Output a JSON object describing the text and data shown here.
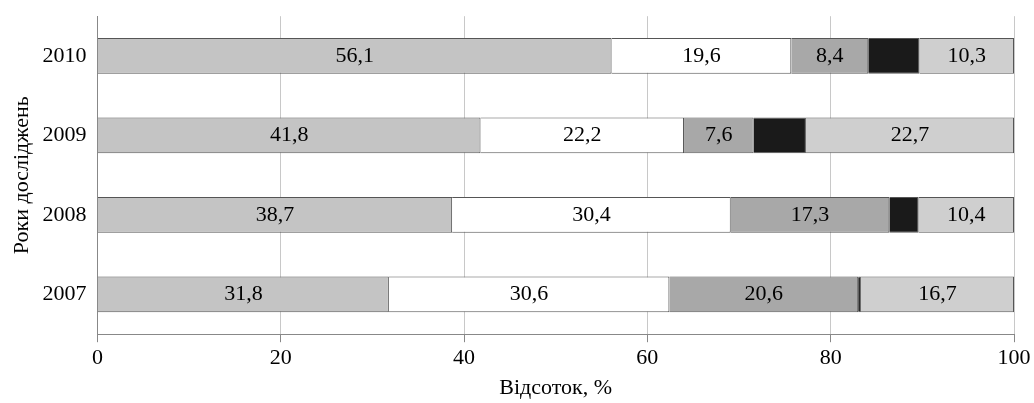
{
  "chart_data": {
    "type": "bar",
    "orientation": "horizontal",
    "stacked": true,
    "xlabel": "Відсоток, %",
    "ylabel": "Роки досліджень",
    "categories": [
      "2010",
      "2009",
      "2008",
      "2007"
    ],
    "series": [
      {
        "color": "#c4c4c4",
        "values": [
          56.1,
          41.8,
          38.7,
          31.8
        ],
        "value_labels": [
          "56,1",
          "41,8",
          "38,7",
          "31,8"
        ]
      },
      {
        "color": "#ffffff",
        "values": [
          19.6,
          22.2,
          30.4,
          30.6
        ],
        "value_labels": [
          "19,6",
          "22,2",
          "30,4",
          "30,6"
        ]
      },
      {
        "color": "#a8a8a8",
        "values": [
          8.4,
          7.6,
          17.3,
          20.6
        ],
        "value_labels": [
          "8,4",
          "7,6",
          "17,3",
          "20,6"
        ]
      },
      {
        "color": "#1a1a1a",
        "values": [
          5.6,
          5.7,
          3.2,
          0.3
        ]
      },
      {
        "color": "#cfcfcf",
        "values": [
          10.3,
          22.7,
          10.4,
          16.7
        ],
        "value_labels": [
          "10,3",
          "22,7",
          "10,4",
          "16,7"
        ]
      }
    ],
    "xlim": [
      0,
      100
    ],
    "xticks": [
      0,
      20,
      40,
      60,
      80,
      100
    ],
    "grid": "x",
    "legend": false
  }
}
